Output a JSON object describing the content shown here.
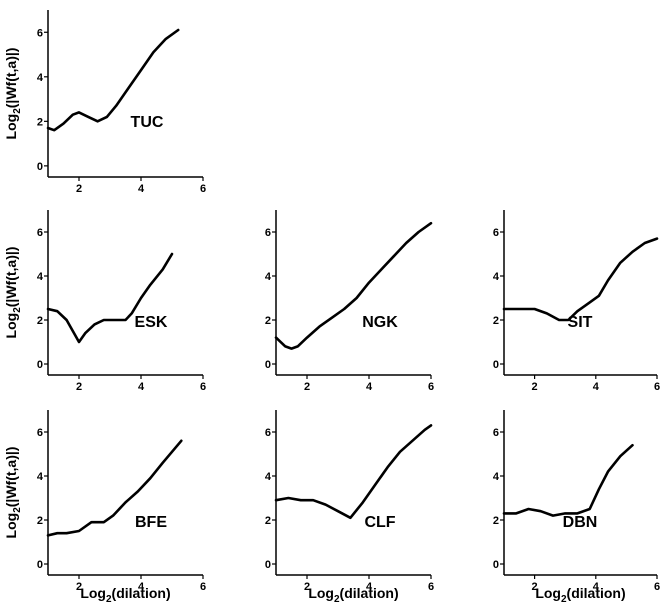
{
  "x_axis_label": {
    "main": "Log",
    "sub": "2",
    "rest": "(dilation)"
  },
  "y_axis_label": {
    "main": "Log",
    "sub": "2",
    "rest": "(|Wf(t,a)|)"
  },
  "chart_data": [
    {
      "type": "line",
      "station": "TUC",
      "xlim": [
        1,
        6
      ],
      "ylim": [
        -0.5,
        7
      ],
      "xticks": [
        "2",
        "4",
        "6"
      ],
      "yticks": [
        "0",
        "2",
        "4",
        "6"
      ],
      "x": [
        1.0,
        1.2,
        1.5,
        1.8,
        2.0,
        2.3,
        2.6,
        2.9,
        3.2,
        3.6,
        4.0,
        4.4,
        4.8,
        5.2
      ],
      "y": [
        1.7,
        1.6,
        1.9,
        2.3,
        2.4,
        2.2,
        2.0,
        2.2,
        2.7,
        3.5,
        4.3,
        5.1,
        5.7,
        6.1
      ]
    },
    {
      "type": "line",
      "station": "ESK",
      "xlim": [
        1,
        6
      ],
      "ylim": [
        -0.5,
        7
      ],
      "xticks": [
        "2",
        "4",
        "6"
      ],
      "yticks": [
        "0",
        "2",
        "4",
        "6"
      ],
      "x": [
        1.0,
        1.3,
        1.6,
        1.8,
        2.0,
        2.2,
        2.5,
        2.8,
        3.1,
        3.5,
        3.7,
        4.0,
        4.3,
        4.7,
        5.0
      ],
      "y": [
        2.5,
        2.4,
        2.0,
        1.5,
        1.0,
        1.4,
        1.8,
        2.0,
        2.0,
        2.0,
        2.3,
        3.0,
        3.6,
        4.3,
        5.0
      ]
    },
    {
      "type": "line",
      "station": "NGK",
      "xlim": [
        1,
        6
      ],
      "ylim": [
        -0.5,
        7
      ],
      "xticks": [
        "2",
        "4",
        "6"
      ],
      "yticks": [
        "0",
        "2",
        "4",
        "6"
      ],
      "x": [
        1.0,
        1.3,
        1.5,
        1.7,
        2.0,
        2.4,
        2.8,
        3.2,
        3.6,
        4.0,
        4.4,
        4.8,
        5.2,
        5.6,
        6.0
      ],
      "y": [
        1.2,
        0.8,
        0.7,
        0.8,
        1.2,
        1.7,
        2.1,
        2.5,
        3.0,
        3.7,
        4.3,
        4.9,
        5.5,
        6.0,
        6.4
      ]
    },
    {
      "type": "line",
      "station": "SIT",
      "xlim": [
        1,
        6
      ],
      "ylim": [
        -0.5,
        7
      ],
      "xticks": [
        "2",
        "4",
        "6"
      ],
      "yticks": [
        "0",
        "2",
        "4",
        "6"
      ],
      "x": [
        1.0,
        1.5,
        2.0,
        2.4,
        2.8,
        3.1,
        3.4,
        3.8,
        4.1,
        4.4,
        4.8,
        5.2,
        5.6,
        6.0
      ],
      "y": [
        2.5,
        2.5,
        2.5,
        2.3,
        2.0,
        2.0,
        2.4,
        2.8,
        3.1,
        3.8,
        4.6,
        5.1,
        5.5,
        5.7
      ]
    },
    {
      "type": "line",
      "station": "BFE",
      "xlim": [
        1,
        6
      ],
      "ylim": [
        -0.5,
        7
      ],
      "xticks": [
        "2",
        "4",
        "6"
      ],
      "yticks": [
        "0",
        "2",
        "4",
        "6"
      ],
      "x": [
        1.0,
        1.3,
        1.6,
        2.0,
        2.4,
        2.8,
        3.1,
        3.5,
        3.9,
        4.3,
        4.7,
        5.0,
        5.3
      ],
      "y": [
        1.3,
        1.4,
        1.4,
        1.5,
        1.9,
        1.9,
        2.2,
        2.8,
        3.3,
        3.9,
        4.6,
        5.1,
        5.6
      ]
    },
    {
      "type": "line",
      "station": "CLF",
      "xlim": [
        1,
        6
      ],
      "ylim": [
        -0.5,
        7
      ],
      "xticks": [
        "2",
        "4",
        "6"
      ],
      "yticks": [
        "0",
        "2",
        "4",
        "6"
      ],
      "x": [
        1.0,
        1.4,
        1.8,
        2.2,
        2.6,
        3.0,
        3.4,
        3.8,
        4.2,
        4.6,
        5.0,
        5.4,
        5.8,
        6.0
      ],
      "y": [
        2.9,
        3.0,
        2.9,
        2.9,
        2.7,
        2.4,
        2.1,
        2.8,
        3.6,
        4.4,
        5.1,
        5.6,
        6.1,
        6.3
      ]
    },
    {
      "type": "line",
      "station": "DBN",
      "xlim": [
        1,
        6
      ],
      "ylim": [
        -0.5,
        7
      ],
      "xticks": [
        "2",
        "4",
        "6"
      ],
      "yticks": [
        "0",
        "2",
        "4",
        "6"
      ],
      "x": [
        1.0,
        1.4,
        1.8,
        2.2,
        2.6,
        3.0,
        3.4,
        3.8,
        4.1,
        4.4,
        4.8,
        5.2
      ],
      "y": [
        2.3,
        2.3,
        2.5,
        2.4,
        2.2,
        2.3,
        2.3,
        2.5,
        3.4,
        4.2,
        4.9,
        5.4
      ]
    }
  ]
}
